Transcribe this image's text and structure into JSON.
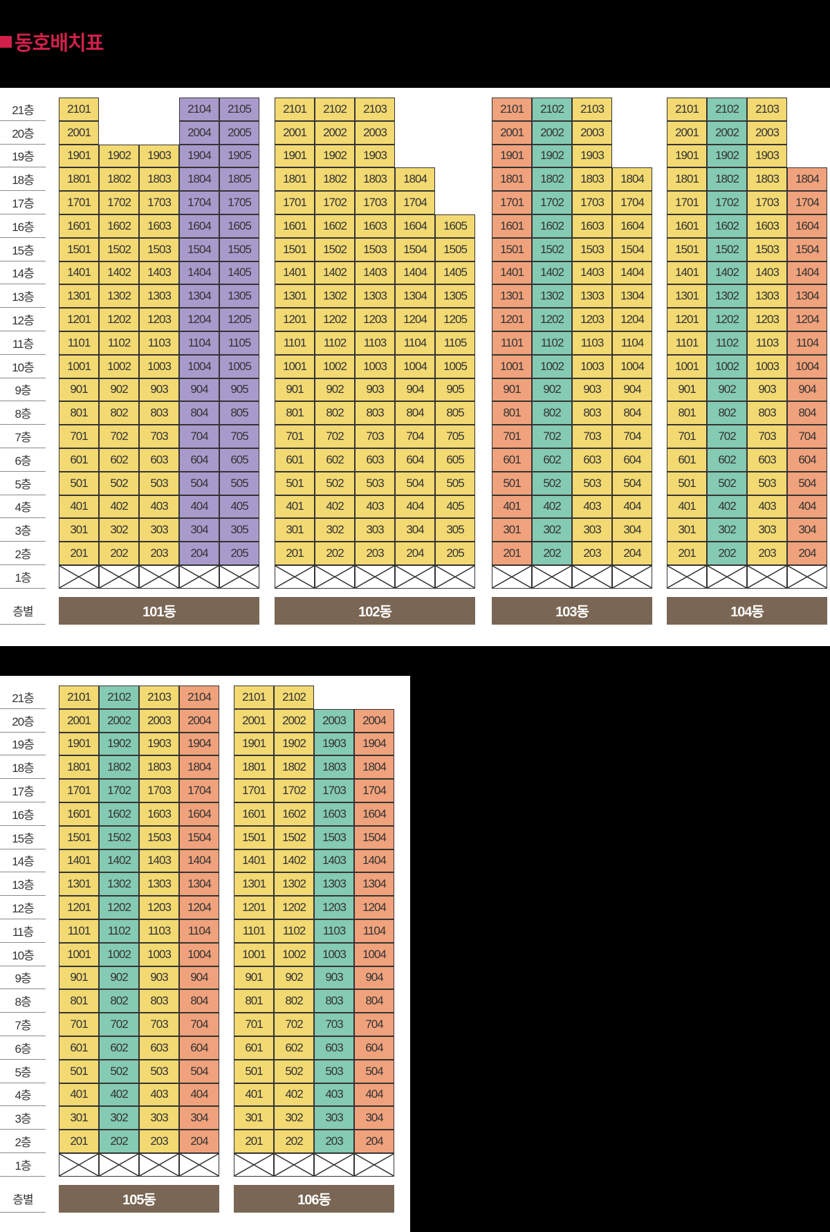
{
  "title": "동호배치표",
  "floor_suffix": "층",
  "footer_label": "층별",
  "colors": {
    "Y": "#f2d972",
    "P": "#a99acc",
    "T": "#85cab3",
    "O": "#f0a27c",
    "label_bg": "#7a6654",
    "title": "#d0204a"
  },
  "sections": [
    {
      "buildings": [
        {
          "label": "101동",
          "x": 85,
          "columns": [
            {
              "unit": 1,
              "max": 21,
              "color": "Y"
            },
            {
              "unit": 2,
              "max": 19,
              "color": "Y"
            },
            {
              "unit": 3,
              "max": 19,
              "color": "Y"
            },
            {
              "unit": 4,
              "max": 21,
              "color": "P"
            },
            {
              "unit": 5,
              "max": 21,
              "color": "P"
            }
          ]
        },
        {
          "label": "102동",
          "x": 397,
          "columns": [
            {
              "unit": 1,
              "max": 21,
              "color": "Y"
            },
            {
              "unit": 2,
              "max": 21,
              "color": "Y"
            },
            {
              "unit": 3,
              "max": 21,
              "color": "Y"
            },
            {
              "unit": 4,
              "max": 18,
              "color": "Y"
            },
            {
              "unit": 5,
              "max": 16,
              "color": "Y"
            }
          ]
        },
        {
          "label": "103동",
          "x": 711,
          "columns": [
            {
              "unit": 1,
              "max": 21,
              "color": "O"
            },
            {
              "unit": 2,
              "max": 21,
              "color": "T"
            },
            {
              "unit": 3,
              "max": 21,
              "color": "Y"
            },
            {
              "unit": 4,
              "max": 18,
              "color": "Y"
            }
          ]
        },
        {
          "label": "104동",
          "x": 964,
          "columns": [
            {
              "unit": 1,
              "max": 21,
              "color": "Y"
            },
            {
              "unit": 2,
              "max": 21,
              "color": "T"
            },
            {
              "unit": 3,
              "max": 21,
              "color": "Y"
            },
            {
              "unit": 4,
              "max": 18,
              "color": "O"
            }
          ]
        }
      ]
    },
    {
      "buildings": [
        {
          "label": "105동",
          "x": 85,
          "columns": [
            {
              "unit": 1,
              "max": 21,
              "color": "Y"
            },
            {
              "unit": 2,
              "max": 21,
              "color": "T"
            },
            {
              "unit": 3,
              "max": 21,
              "color": "Y"
            },
            {
              "unit": 4,
              "max": 21,
              "color": "O"
            }
          ]
        },
        {
          "label": "106동",
          "x": 338,
          "columns": [
            {
              "unit": 1,
              "max": 21,
              "color": "Y"
            },
            {
              "unit": 2,
              "max": 21,
              "color": "Y"
            },
            {
              "unit": 3,
              "max": 20,
              "color": "T"
            },
            {
              "unit": 4,
              "max": 20,
              "color": "O"
            }
          ]
        }
      ]
    }
  ]
}
